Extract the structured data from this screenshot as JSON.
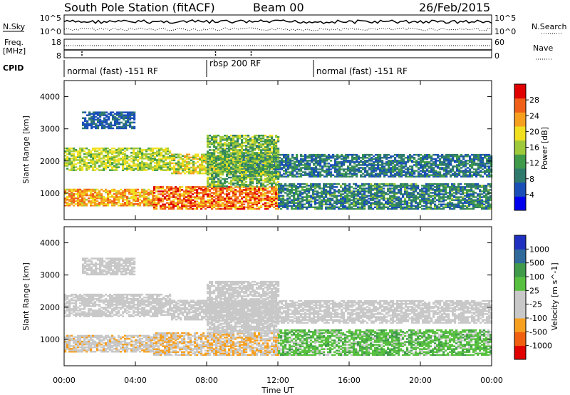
{
  "header": {
    "station": "South Pole Station (fitACF)",
    "beam": "Beam 00",
    "date": "26/Feb/2015"
  },
  "side_labels": {
    "nsky": "N.Sky",
    "freq": "Freq.",
    "mhz": "[MHz]",
    "cpid": "CPID",
    "nsearch": "N.Search",
    "nave": "Nave"
  },
  "chart_data": [
    {
      "type": "line",
      "name": "noise-panel",
      "left_label": "N.Sky",
      "right_label": "N.Search",
      "left_ticks": [
        "10^5",
        "10^0"
      ],
      "right_ticks": [
        "10^5",
        "10^0"
      ],
      "scale": "log"
    },
    {
      "type": "line",
      "name": "freq-panel",
      "left_label": "Freq. [MHz]",
      "right_label": "Nave",
      "left_ticks": [
        "18",
        "8"
      ],
      "right_ticks": [
        "60",
        "0"
      ],
      "ylim_left": [
        8,
        18
      ],
      "ylim_right": [
        0,
        60
      ]
    },
    {
      "type": "table",
      "name": "cpid-bar",
      "label": "CPID",
      "segments": [
        {
          "label": "normal (fast) -151 RF",
          "start_hour": 0
        },
        {
          "label": "rbsp 200 RF",
          "start_hour": 8
        },
        {
          "label": "normal (fast) -151 RF",
          "start_hour": 14
        }
      ]
    },
    {
      "type": "heatmap",
      "name": "power",
      "ylabel": "Slant Range [km]",
      "y_ticks": [
        "4000",
        "3000",
        "2000",
        "1000"
      ],
      "ylim": [
        180,
        4500
      ],
      "xlim_hours": [
        0,
        24
      ],
      "colorbar_label": "Power [dB]",
      "colorbar_ticks": [
        "28",
        "24",
        "20",
        "16",
        "12",
        "8",
        "4"
      ],
      "colorbar_range": [
        0,
        30
      ],
      "colors": [
        "#0000ee",
        "#1a4fb8",
        "#2f7a6c",
        "#3f9a4a",
        "#9ec93b",
        "#f0e020",
        "#f7a020",
        "#f06018",
        "#e00000"
      ]
    },
    {
      "type": "heatmap",
      "name": "velocity",
      "ylabel": "Slant Range [km]",
      "y_ticks": [
        "4000",
        "3000",
        "2000",
        "1000"
      ],
      "ylim": [
        180,
        4500
      ],
      "xlim_hours": [
        0,
        24
      ],
      "colorbar_label": "Velocity [m s^-1]",
      "colorbar_ticks": [
        "1000",
        "500",
        "100",
        "25",
        "-25",
        "-100",
        "-500",
        "-1000"
      ],
      "colorbar_range": [
        -1000,
        1000
      ],
      "colors": [
        "#e00000",
        "#f06010",
        "#f7a020",
        "#c8c8c8",
        "#c8c8c8",
        "#58c040",
        "#3f9a4a",
        "#2f6a9a",
        "#2030c0"
      ]
    }
  ],
  "x_axis": {
    "label": "Time UT",
    "ticks": [
      "00:00",
      "04:00",
      "08:00",
      "12:00",
      "16:00",
      "20:00",
      "00:00"
    ]
  }
}
